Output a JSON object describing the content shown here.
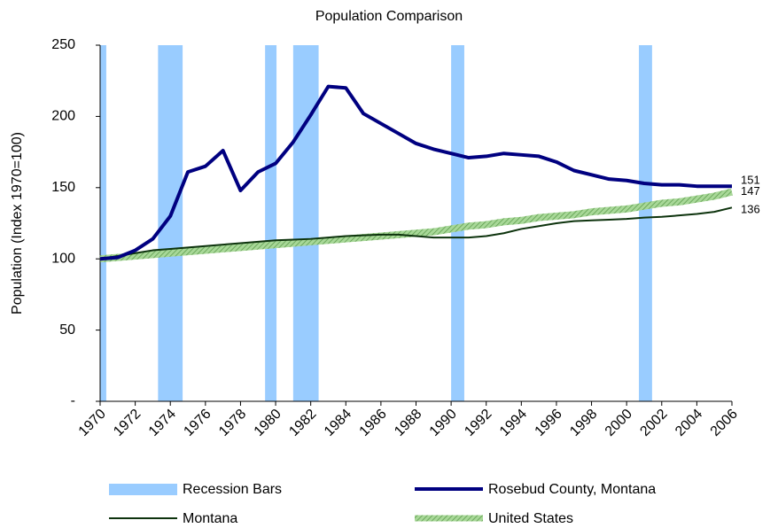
{
  "chart_data": {
    "type": "line",
    "title": "Population Comparison",
    "y_label": "Population (Index 1970=100)",
    "x": [
      1970,
      1971,
      1972,
      1973,
      1974,
      1975,
      1976,
      1977,
      1978,
      1979,
      1980,
      1981,
      1982,
      1983,
      1984,
      1985,
      1986,
      1987,
      1988,
      1989,
      1990,
      1991,
      1992,
      1993,
      1994,
      1995,
      1996,
      1997,
      1998,
      1999,
      2000,
      2001,
      2002,
      2003,
      2004,
      2005,
      2006
    ],
    "xlim": [
      1970,
      2006
    ],
    "xticks": [
      1970,
      1972,
      1974,
      1976,
      1978,
      1980,
      1982,
      1984,
      1986,
      1988,
      1990,
      1992,
      1994,
      1996,
      1998,
      2000,
      2002,
      2004,
      2006
    ],
    "ylim": [
      0,
      250
    ],
    "yticks": [
      {
        "value": 0,
        "label": "-"
      },
      50,
      100,
      150,
      200,
      250
    ],
    "bands": {
      "name": "Recession Bars",
      "color": "#99ccff",
      "start": [
        1970,
        1973.3,
        1979.4,
        1981,
        1990,
        2000.7
      ],
      "end": [
        1970.35,
        1974.7,
        1980.05,
        1982.45,
        1990.75,
        2001.45
      ]
    },
    "series": [
      {
        "name": "Rosebud County, Montana",
        "color": "#000080",
        "width": 4,
        "values": [
          100,
          101,
          106,
          114,
          130,
          161,
          165,
          176,
          148,
          161,
          167,
          182,
          201,
          221,
          220,
          202,
          195,
          188,
          181,
          177,
          174,
          171,
          172,
          174,
          173,
          172,
          168,
          162,
          159,
          156,
          155,
          153,
          152,
          152,
          151,
          151,
          151
        ]
      },
      {
        "name": "Montana",
        "color": "#0d330d",
        "width": 2,
        "values": [
          100,
          102,
          104,
          106,
          107,
          108,
          109,
          110,
          111,
          112,
          113,
          113.5,
          114,
          115,
          116,
          116.5,
          117,
          117,
          116,
          115,
          115,
          115,
          116,
          118,
          121,
          123,
          125,
          126.5,
          127,
          127.5,
          128,
          129,
          129.5,
          130.5,
          131.5,
          133,
          136
        ]
      },
      {
        "name": "United States",
        "color": "#8fc27d",
        "width": 8,
        "values": [
          100,
          101,
          102,
          103,
          104,
          105,
          106,
          107,
          108,
          109,
          110,
          111,
          112,
          113,
          114,
          115,
          116,
          117,
          118,
          119,
          121,
          123,
          124,
          126,
          127,
          129,
          130,
          131,
          133,
          134,
          135,
          137,
          139,
          140,
          142,
          144,
          147
        ]
      }
    ]
  }
}
